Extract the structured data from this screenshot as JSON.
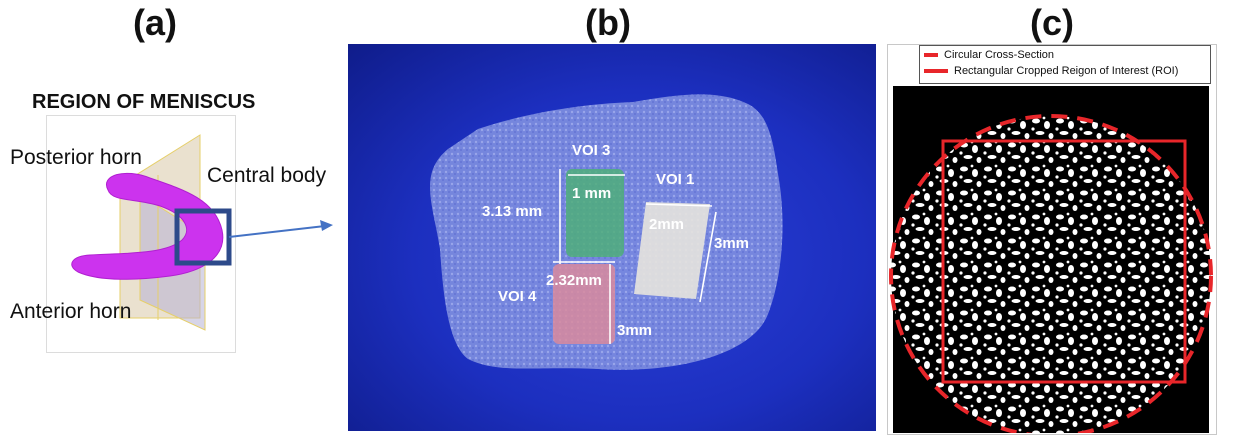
{
  "panels": {
    "a": {
      "label": "(a)",
      "title": "REGION OF MENISCUS",
      "posterior": "Posterior horn",
      "central": "Central body",
      "anterior": "Anterior horn"
    },
    "b": {
      "label": "(b)",
      "voi3": "VOI 3",
      "voi1": "VOI 1",
      "voi4": "VOI 4",
      "dim_313": "3.13 mm",
      "dim_1mm": "1 mm",
      "dim_2mm": "2mm",
      "dim_3mm_right": "3mm",
      "dim_232": "2.32mm",
      "dim_3mm_bottom": "3mm"
    },
    "c": {
      "label": "(c)",
      "legend_1": "Circular Cross-Section",
      "legend_2": "Rectangular Cropped Reigon of Interest (ROI)"
    }
  },
  "colors": {
    "meniscus": "#cc33ee",
    "roi_marker": "#2d4a8a",
    "arrow": "#4472c4",
    "legend_red": "#e8262a",
    "volume_bg": "#1c2fbf",
    "voi3_fill": "#4fae7a",
    "voi1_fill": "#e7e4de",
    "voi4_fill": "#d98a9e"
  }
}
